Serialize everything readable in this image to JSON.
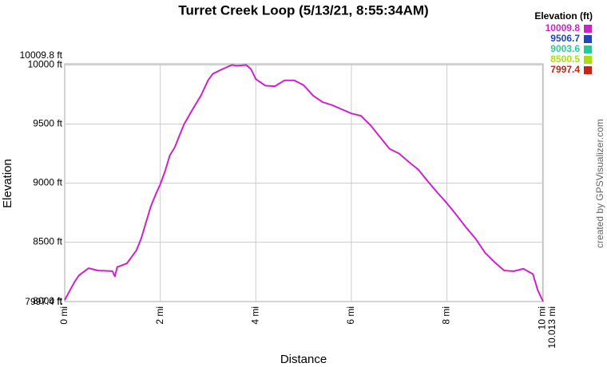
{
  "chart_data": {
    "type": "line",
    "title": "Turret Creek Loop (5/13/21, 8:55:34AM)",
    "x_label": "Distance",
    "y_label": "Elevation",
    "credit": "created by GPSVisualizer.com",
    "legend_title": "Elevation (ft)",
    "color_scale": [
      {
        "value": 10009.8,
        "color": "#cc22cc"
      },
      {
        "value": 9506.7,
        "color": "#2244bb"
      },
      {
        "value": 9003.6,
        "color": "#22cc99"
      },
      {
        "value": 8500.5,
        "color": "#aadd11"
      },
      {
        "value": 7997.4,
        "color": "#cc2211"
      }
    ],
    "x": [
      0,
      0.2,
      0.3,
      0.5,
      0.7,
      1.0,
      1.05,
      1.1,
      1.3,
      1.5,
      1.6,
      1.7,
      1.8,
      1.9,
      2.0,
      2.1,
      2.2,
      2.3,
      2.4,
      2.5,
      2.6,
      2.7,
      2.85,
      3.0,
      3.1,
      3.3,
      3.5,
      3.6,
      3.8,
      3.9,
      4.0,
      4.2,
      4.4,
      4.6,
      4.8,
      5.0,
      5.2,
      5.4,
      5.6,
      5.8,
      6.0,
      6.2,
      6.4,
      6.6,
      6.8,
      7.0,
      7.2,
      7.4,
      7.6,
      7.8,
      8.0,
      8.2,
      8.4,
      8.6,
      8.8,
      9.0,
      9.2,
      9.4,
      9.6,
      9.8,
      9.9,
      10.013
    ],
    "series": [
      {
        "name": "Elevation",
        "values": [
          8010,
          8160,
          8220,
          8280,
          8260,
          8255,
          8210,
          8290,
          8320,
          8430,
          8530,
          8665,
          8800,
          8900,
          8990,
          9100,
          9235,
          9300,
          9400,
          9500,
          9570,
          9640,
          9740,
          9870,
          9925,
          9965,
          10000,
          9993,
          10000,
          9965,
          9880,
          9825,
          9820,
          9870,
          9870,
          9830,
          9740,
          9685,
          9660,
          9625,
          9590,
          9570,
          9490,
          9390,
          9290,
          9250,
          9180,
          9115,
          9015,
          8920,
          8830,
          8730,
          8625,
          8530,
          8410,
          8330,
          8260,
          8255,
          8275,
          8230,
          8095,
          7997.4
        ]
      }
    ],
    "xlim": [
      0,
      10.013
    ],
    "xticks": [
      {
        "value": 0,
        "label": "0 mi"
      },
      {
        "value": 2,
        "label": "2 mi"
      },
      {
        "value": 4,
        "label": "4 mi"
      },
      {
        "value": 6,
        "label": "6 mi"
      },
      {
        "value": 8,
        "label": "8 mi"
      },
      {
        "value": 10,
        "label": "10 mi"
      },
      {
        "value": 10.013,
        "label": "10.013 mi"
      }
    ],
    "ylim": [
      7997.4,
      10009.8
    ],
    "yticks": [
      {
        "value": 7997.4,
        "label": "7997.4 ft"
      },
      {
        "value": 8000,
        "label": "8000 ft"
      },
      {
        "value": 8500,
        "label": "8500 ft"
      },
      {
        "value": 9000,
        "label": "9000 ft"
      },
      {
        "value": 9500,
        "label": "9500 ft"
      },
      {
        "value": 10000,
        "label": "10000 ft"
      },
      {
        "value": 10009.8,
        "label": "10009.8 ft"
      }
    ],
    "grid": true
  }
}
